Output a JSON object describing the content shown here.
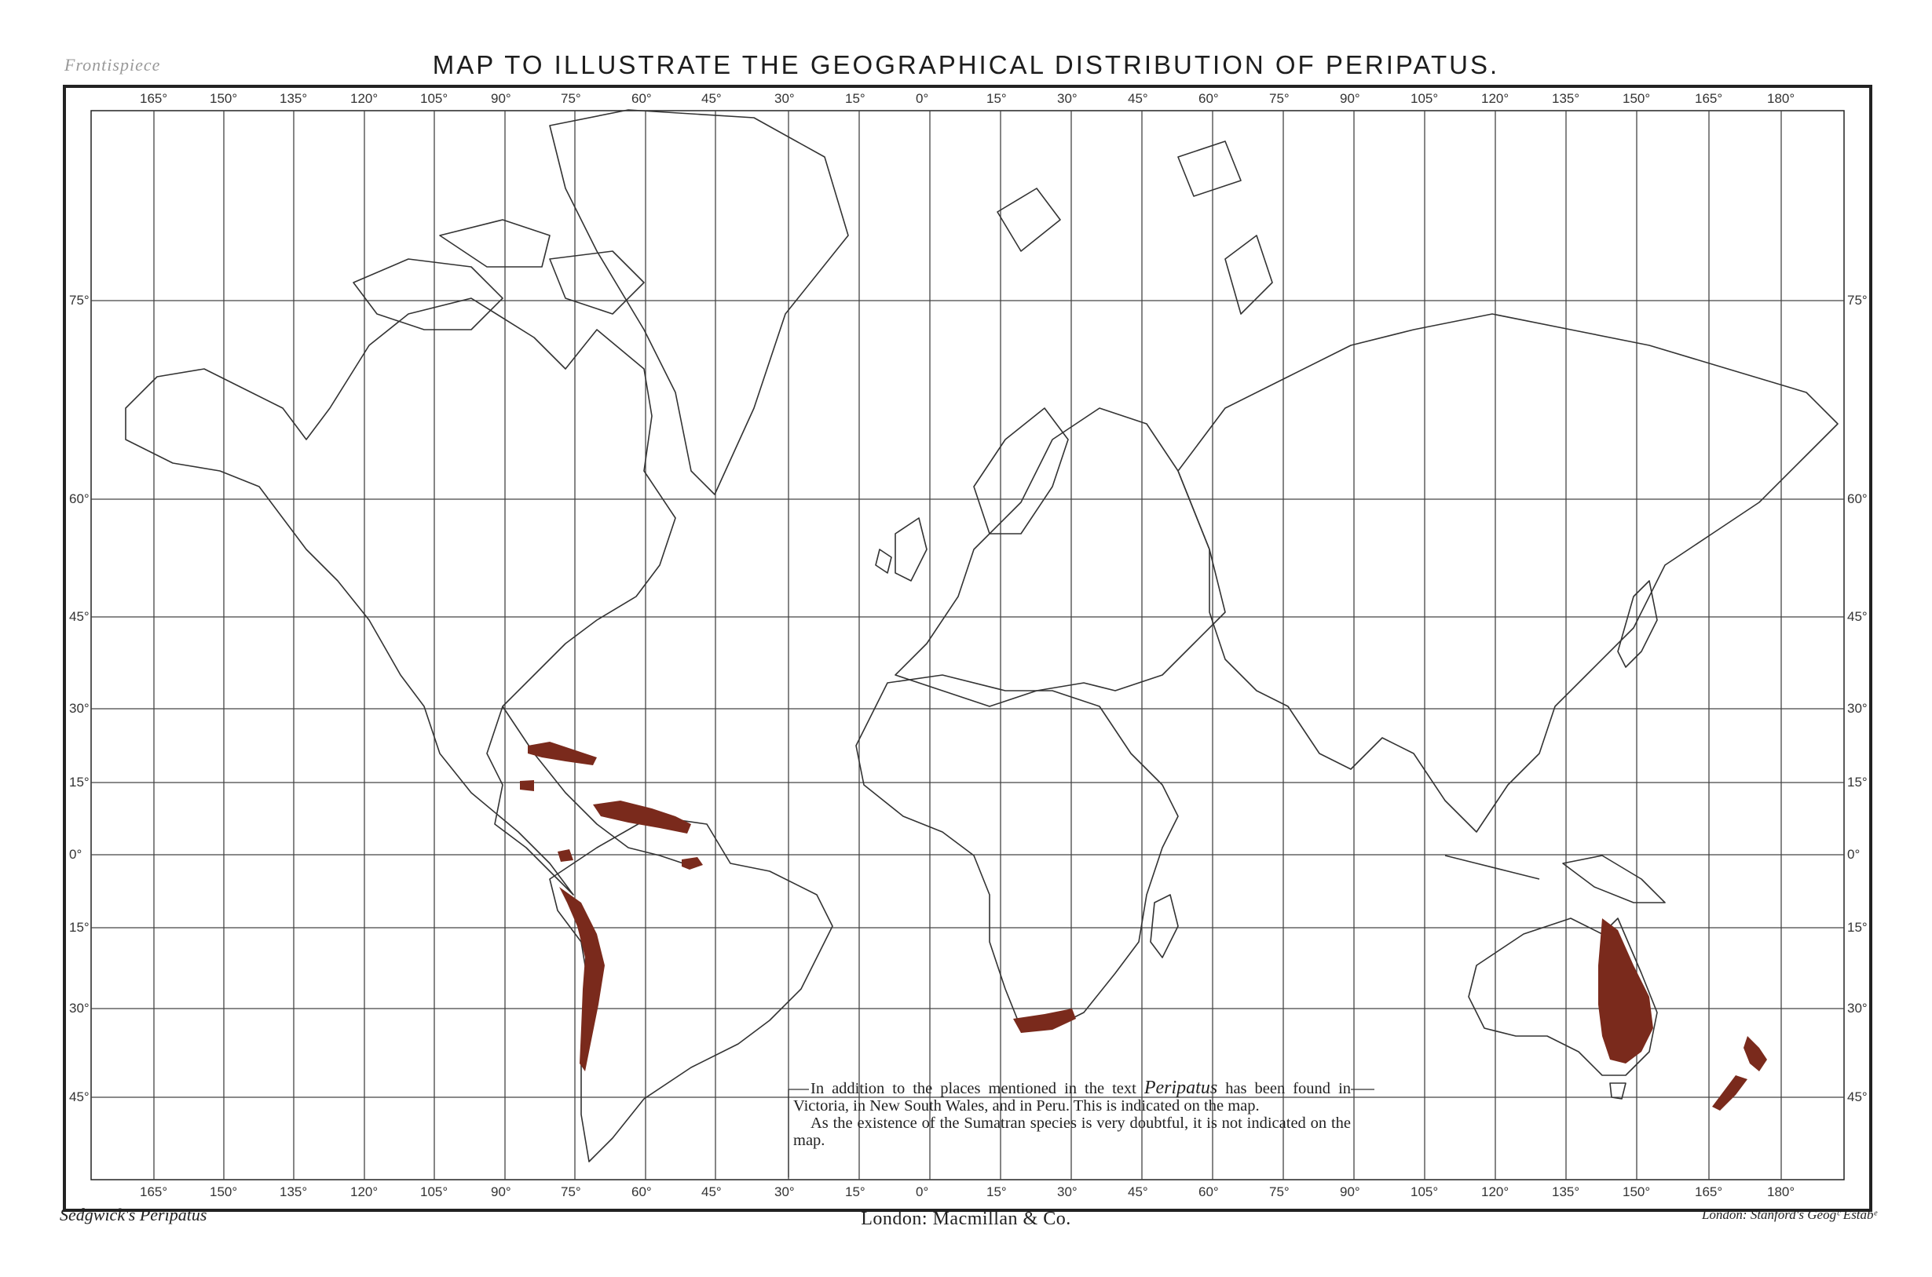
{
  "header": {
    "frontispiece": "Frontispiece",
    "title": "MAP TO ILLUSTRATE THE GEOGRAPHICAL DISTRIBUTION OF PERIPATUS."
  },
  "longitude_labels": [
    "165°",
    "150°",
    "135°",
    "120°",
    "105°",
    "90°",
    "75°",
    "60°",
    "45°",
    "30°",
    "15°",
    "0°",
    "15°",
    "30°",
    "45°",
    "60°",
    "75°",
    "90°",
    "105°",
    "120°",
    "135°",
    "150°",
    "165°",
    "180°"
  ],
  "latitude_labels": [
    "75°",
    "60°",
    "45°",
    "30°",
    "15°",
    "0°",
    "15°",
    "30°",
    "45°"
  ],
  "note": {
    "line1_before": "In addition to the places mentioned in the text",
    "line1_genus": "Peripatus",
    "line1_after": "has been found in Victoria, in New South Wales, and in Peru. This is indicated on the map.",
    "line2": "As the existence of the Sumatran species is very doubtful, it is not indicated on the map."
  },
  "footer": {
    "left": "Sedgwick's Peripatus",
    "center": "London: Macmillan & Co.",
    "right": "London: Stanford's Geogᶜ Estabᵉ"
  },
  "legend": {
    "distribution_color": "#7a2a1c",
    "line_color": "#2b2b2b"
  }
}
